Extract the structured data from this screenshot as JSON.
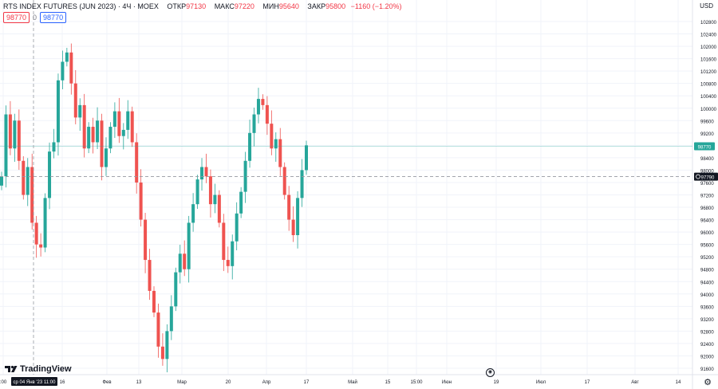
{
  "legend": {
    "symbol": "RTS INDEX FUTURES (JUN 2023) · 4Ч · MOEX",
    "open_label": "ОТКР",
    "open_value": "97130",
    "high_label": "МАКС",
    "high_value": "97220",
    "low_label": "МИН",
    "low_value": "95640",
    "close_label": "ЗАКР",
    "close_value": "95800",
    "change": "−1160 (−1.20%)"
  },
  "price_boxes": {
    "sell": "98770",
    "spread": "0",
    "buy": "98770"
  },
  "currency": "USD",
  "brand": "TradingView",
  "crosshair": {
    "price": "97790",
    "time": "ср 04 Янв '23   11:00"
  },
  "last_price": "98770",
  "colors": {
    "up": "#26a69a",
    "down": "#ef5350",
    "last_price_line": "#26a69a",
    "crosshair": "#9598a1"
  },
  "chart_data": {
    "type": "candlestick",
    "ylim": [
      91600,
      103200
    ],
    "y_ticks": [
      "102800",
      "102400",
      "102000",
      "101600",
      "101200",
      "100800",
      "100400",
      "100000",
      "99600",
      "99200",
      "98800",
      "98400",
      "98000",
      "97600",
      "97200",
      "96800",
      "96400",
      "96000",
      "95600",
      "95200",
      "94800",
      "94400",
      "94000",
      "93600",
      "93200",
      "92800",
      "92400",
      "92000",
      "91600"
    ],
    "x_ticks": [
      ":00",
      "16",
      "Фев",
      "13",
      "Мар",
      "20",
      "Апр",
      "17",
      "Май",
      "15",
      "15:00",
      "Июн",
      "19",
      "Июл",
      "17",
      "Авг",
      "14"
    ],
    "series": [
      {
        "close": [
          97800,
          99800,
          98700,
          99600,
          98300,
          97200,
          98100,
          96300,
          95600,
          95500,
          97100,
          98600,
          98900,
          100900,
          101500,
          101800,
          100800,
          99700,
          100100,
          98700,
          99400,
          98900,
          99600,
          98100,
          98700,
          99400,
          99900,
          99100,
          99300,
          99900,
          98900,
          97600,
          96400,
          95100,
          94100,
          93400,
          92300,
          91900,
          92800,
          93600,
          94700,
          95300,
          94800,
          96300,
          96900,
          97700,
          98100,
          97800,
          96900,
          97200,
          96300,
          95100,
          94900,
          95700,
          96600,
          97300,
          98300,
          99200,
          99800,
          100300,
          100100,
          99500,
          98700,
          99000,
          98100,
          97200,
          96400,
          95900,
          97100,
          98000,
          98800
        ]
      }
    ]
  }
}
